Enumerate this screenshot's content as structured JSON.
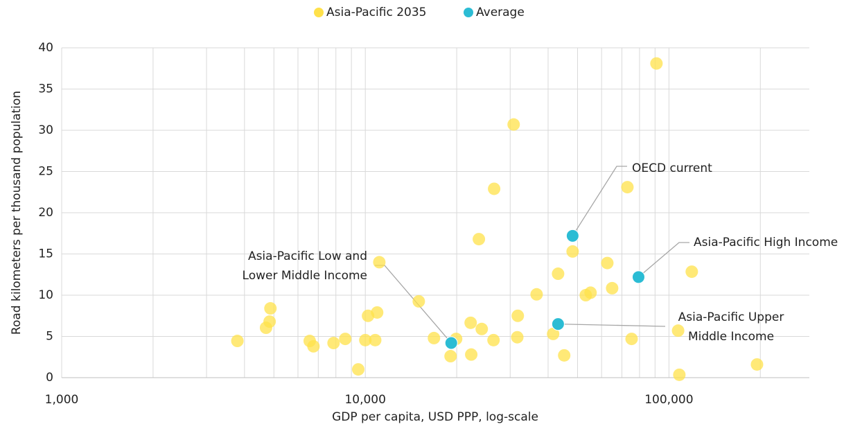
{
  "chart_data": {
    "type": "scatter",
    "x_label": "GDP per capita, USD PPP, log-scale",
    "y_label": "Road kilometers per thousand population",
    "x_log": true,
    "x_minor_grid": true,
    "grid": true,
    "legend": "top",
    "xlim": [
      1000,
      290000
    ],
    "xticks": [
      {
        "value": 1000,
        "label": "1,000"
      },
      {
        "value": 10000,
        "label": "10,000"
      },
      {
        "value": 100000,
        "label": "100,000"
      }
    ],
    "ylim": [
      0,
      40
    ],
    "yticks": [
      0,
      5,
      10,
      15,
      20,
      25,
      30,
      35,
      40
    ],
    "series": [
      {
        "name": "Asia-Pacific 2035",
        "color": "#ffe14a",
        "x": [
          3790,
          4870,
          4710,
          4840,
          6560,
          6750,
          7860,
          8590,
          10000,
          10210,
          10940,
          10780,
          9480,
          11120,
          15000,
          16830,
          19090,
          19910,
          22230,
          22330,
          23660,
          24180,
          26440,
          26560,
          30800,
          31780,
          31660,
          36660,
          41550,
          43140,
          45190,
          48170,
          53220,
          55190,
          62660,
          65000,
          72980,
          75340,
          90970,
          107200,
          108200,
          118900,
          195000
        ],
        "values": [
          4.45,
          8.4,
          6.05,
          6.8,
          4.45,
          3.8,
          4.2,
          4.7,
          4.55,
          7.5,
          7.9,
          4.55,
          1.0,
          14.0,
          9.25,
          4.8,
          2.6,
          4.7,
          6.65,
          2.8,
          16.8,
          5.9,
          4.55,
          22.9,
          30.7,
          7.5,
          4.9,
          10.1,
          5.3,
          12.6,
          2.7,
          15.3,
          10.0,
          10.3,
          13.9,
          10.85,
          23.1,
          4.7,
          38.1,
          5.7,
          0.35,
          12.85,
          1.6
        ]
      },
      {
        "name": "Average",
        "color": "#2bbcd4",
        "x": [
          48170,
          79400,
          43140,
          19190
        ],
        "values": [
          17.2,
          12.2,
          6.5,
          4.2
        ],
        "labels": [
          [
            "OECD current"
          ],
          [
            "Asia-Pacific High Income"
          ],
          [
            "Asia-Pacific Upper",
            "Middle Income"
          ],
          [
            "Asia-Pacific Low and",
            "Lower Middle Income"
          ]
        ]
      }
    ]
  }
}
